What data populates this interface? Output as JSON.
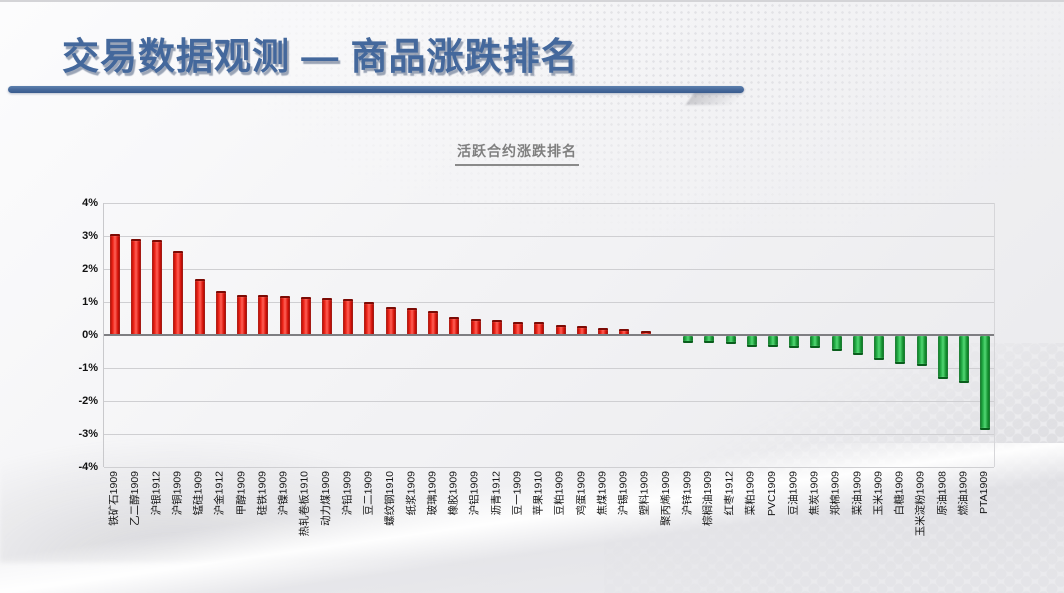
{
  "slide": {
    "title": "交易数据观测 — 商品涨跌排名",
    "accent_color": "#44689c"
  },
  "chart_data": {
    "type": "bar",
    "title": "活跃合约涨跌排名",
    "xlabel": "",
    "ylabel": "",
    "ylim": [
      -4,
      4
    ],
    "ytick_labels": [
      "4%",
      "3%",
      "2%",
      "1%",
      "0%",
      "-1%",
      "-2%",
      "-3%",
      "-4%"
    ],
    "grid": true,
    "legend_position": "none",
    "positive_color": "#e2130c",
    "negative_color": "#1ca640",
    "categories": [
      "铁矿石1909",
      "乙二醇1909",
      "沪银1912",
      "沪铜1909",
      "锰硅1909",
      "沪金1912",
      "甲醇1909",
      "硅铁1909",
      "沪镍1909",
      "热轧卷板1910",
      "动力煤1909",
      "沪铅1909",
      "豆二1909",
      "螺纹钢1910",
      "纸浆1909",
      "玻璃1909",
      "橡胶1909",
      "沪铝1909",
      "沥青1912",
      "豆一1909",
      "苹果1910",
      "豆粕1909",
      "鸡蛋1909",
      "焦煤1909",
      "沪锡1909",
      "塑料1909",
      "聚丙烯1909",
      "沪锌1909",
      "棕榈油1909",
      "红枣1912",
      "菜粕1909",
      "PVC1909",
      "豆油1909",
      "焦炭1909",
      "郑棉1909",
      "菜油1909",
      "玉米1909",
      "白糖1909",
      "玉米淀粉1909",
      "原油1908",
      "燃油1909",
      "PTA1909"
    ],
    "values": [
      3.07,
      2.92,
      2.87,
      2.54,
      1.71,
      1.34,
      1.22,
      1.21,
      1.17,
      1.14,
      1.12,
      1.08,
      1.01,
      0.86,
      0.81,
      0.74,
      0.54,
      0.48,
      0.44,
      0.4,
      0.38,
      0.3,
      0.27,
      0.2,
      0.18,
      0.11,
      0.04,
      -0.21,
      -0.22,
      -0.23,
      -0.34,
      -0.34,
      -0.37,
      -0.37,
      -0.46,
      -0.57,
      -0.74,
      -0.86,
      -0.92,
      -1.31,
      -1.41,
      -2.86
    ]
  }
}
